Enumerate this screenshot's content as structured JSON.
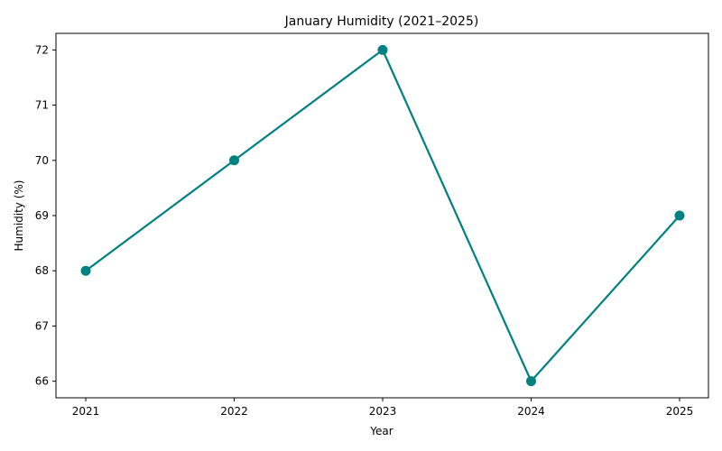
{
  "chart_data": {
    "type": "line",
    "title": "January Humidity (2021–2025)",
    "xlabel": "Year",
    "ylabel": "Humidity (%)",
    "categories": [
      "2021",
      "2022",
      "2023",
      "2024",
      "2025"
    ],
    "series": [
      {
        "values": [
          68,
          70,
          72,
          66,
          69
        ],
        "color": "#008080",
        "marker": "circle"
      }
    ],
    "yticks": [
      "66",
      "67",
      "68",
      "69",
      "70",
      "71",
      "72"
    ],
    "ylim": [
      65.7,
      72.3
    ],
    "grid": false,
    "legend": false
  }
}
